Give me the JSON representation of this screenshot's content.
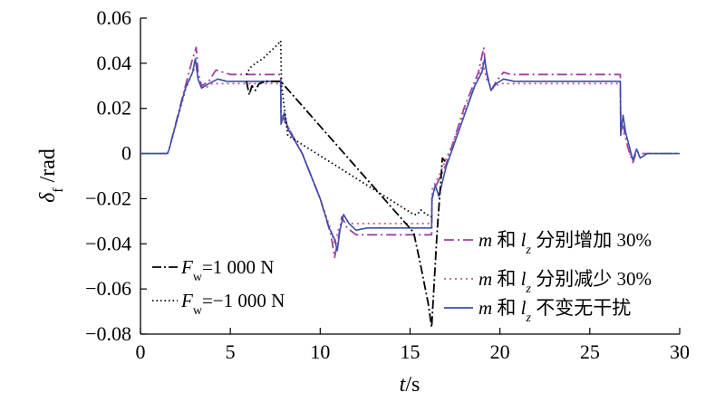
{
  "chart_data": {
    "type": "line",
    "xlabel": "t/s",
    "ylabel": "δf /rad",
    "xlim": [
      0,
      30
    ],
    "ylim": [
      -0.08,
      0.06
    ],
    "xticks": [
      0,
      5,
      10,
      15,
      20,
      25,
      30
    ],
    "xtick_labels": [
      "0",
      "5",
      "10",
      "15",
      "20",
      "25",
      "30"
    ],
    "yticks": [
      -0.08,
      -0.06,
      -0.04,
      -0.02,
      0,
      0.02,
      0.04,
      0.06
    ],
    "ytick_labels": [
      "−0.08",
      "−0.06",
      "−0.04",
      "−0.02",
      "0",
      "0.02",
      "0.04",
      "0.06"
    ],
    "grid": false,
    "legend_right": {
      "placement": "bottom-right",
      "entries": [
        {
          "series": "m_lz_plus30",
          "text": "m 和 lz 分别增加 30%"
        },
        {
          "series": "m_lz_minus30",
          "text": "m 和 lz 分别减少 30%"
        },
        {
          "series": "baseline",
          "text": "m 和 lz 不变无干扰"
        }
      ]
    },
    "legend_left": {
      "placement": "bottom-left",
      "entries": [
        {
          "series": "Fw_plus",
          "text": "Fw=1 000 N"
        },
        {
          "series": "Fw_minus",
          "text": "Fw=−1 000 N"
        }
      ]
    },
    "series": [
      {
        "id": "m_lz_plus30",
        "name": "m 和 lz 分别增加 30%",
        "color": "#a23ea6",
        "dash": "11,4,2,4",
        "x": [
          0,
          1.5,
          1.6,
          2.5,
          2.9,
          3.1,
          3.2,
          3.4,
          3.8,
          4.2,
          4.6,
          5.0,
          7.8,
          7.82,
          8.0,
          8.2,
          9.0,
          10.0,
          10.6,
          10.8,
          11.0,
          11.2,
          11.5,
          12.0,
          12.5,
          13.0,
          16.2,
          16.22,
          16.4,
          17.0,
          18.0,
          18.8,
          19.1,
          19.2,
          19.5,
          19.8,
          20.2,
          20.6,
          21.0,
          26.7,
          26.72,
          26.9,
          27.1,
          27.4,
          27.6,
          27.8,
          28.2,
          30
        ],
        "y": [
          0,
          0,
          0.002,
          0.03,
          0.042,
          0.047,
          0.036,
          0.03,
          0.032,
          0.037,
          0.036,
          0.035,
          0.035,
          0.018,
          0.015,
          0.012,
          0.0,
          -0.02,
          -0.036,
          -0.046,
          -0.038,
          -0.028,
          -0.033,
          -0.036,
          -0.036,
          -0.036,
          -0.036,
          -0.02,
          -0.015,
          -0.005,
          0.02,
          0.036,
          0.047,
          0.038,
          0.028,
          0.032,
          0.036,
          0.035,
          0.035,
          0.035,
          0.014,
          0.011,
          0.003,
          -0.004,
          0.001,
          0.0,
          0.0,
          0
        ]
      },
      {
        "id": "m_lz_minus30",
        "name": "m 和 lz 分别减少 30%",
        "color": "#c8559a",
        "dash": "2,4",
        "x": [
          0,
          1.5,
          1.6,
          2.5,
          2.9,
          3.1,
          3.3,
          3.6,
          4.0,
          4.5,
          7.8,
          7.82,
          8.2,
          9.0,
          10.0,
          10.6,
          10.8,
          11.0,
          11.3,
          11.8,
          12.5,
          16.2,
          16.22,
          16.6,
          17.4,
          18.2,
          18.8,
          19.05,
          19.3,
          19.6,
          20.0,
          20.5,
          26.7,
          26.72,
          27.0,
          27.2,
          27.5,
          28.0,
          30
        ],
        "y": [
          0,
          0,
          0.002,
          0.028,
          0.036,
          0.039,
          0.031,
          0.029,
          0.031,
          0.031,
          0.031,
          0.016,
          0.012,
          0.0,
          -0.02,
          -0.034,
          -0.04,
          -0.034,
          -0.029,
          -0.031,
          -0.031,
          -0.031,
          -0.016,
          -0.01,
          0.005,
          0.022,
          0.034,
          0.04,
          0.032,
          0.029,
          0.031,
          0.031,
          0.031,
          0.012,
          0.007,
          0.0,
          -0.002,
          0.0,
          0
        ]
      },
      {
        "id": "baseline",
        "name": "m 和 lz 不变无干扰",
        "color": "#3a4fa8",
        "dash": "",
        "x": [
          0,
          1.5,
          1.6,
          2.5,
          2.9,
          3.05,
          3.2,
          3.4,
          3.8,
          4.3,
          4.8,
          7.8,
          7.82,
          8.0,
          8.2,
          9.0,
          10.0,
          10.5,
          10.8,
          10.95,
          11.1,
          11.3,
          11.6,
          12.0,
          12.6,
          16.2,
          16.22,
          16.4,
          16.6,
          17.0,
          17.8,
          18.6,
          19.0,
          19.15,
          19.3,
          19.5,
          19.8,
          20.2,
          20.8,
          26.7,
          26.72,
          26.85,
          27.0,
          27.2,
          27.4,
          27.6,
          27.8,
          28.2,
          30
        ],
        "y": [
          0,
          0,
          0.002,
          0.029,
          0.036,
          0.042,
          0.033,
          0.029,
          0.031,
          0.033,
          0.032,
          0.032,
          0.013,
          0.018,
          0.011,
          0.0,
          -0.02,
          -0.033,
          -0.038,
          -0.043,
          -0.034,
          -0.027,
          -0.031,
          -0.034,
          -0.033,
          -0.033,
          -0.02,
          -0.014,
          -0.019,
          -0.006,
          0.012,
          0.03,
          0.036,
          0.042,
          0.034,
          0.028,
          0.031,
          0.033,
          0.032,
          0.032,
          0.008,
          0.017,
          0.009,
          0.003,
          -0.003,
          0.002,
          -0.002,
          0.0,
          0
        ]
      },
      {
        "id": "Fw_plus",
        "name": "Fw=1 000 N",
        "color": "#000000",
        "dash": "10,3,2,3",
        "x": [
          5.9,
          6.05,
          6.2,
          6.4,
          6.6,
          7.0,
          7.5,
          7.8,
          15.2,
          15.6,
          16.0,
          16.2,
          16.5,
          16.8,
          17.0
        ],
        "y": [
          0.032,
          0.026,
          0.03,
          0.028,
          0.031,
          0.032,
          0.032,
          0.032,
          -0.035,
          -0.05,
          -0.066,
          -0.077,
          -0.035,
          -0.002,
          -0.004
        ]
      },
      {
        "id": "Fw_minus",
        "name": "Fw=−1 000 N",
        "color": "#000000",
        "dash": "1.5,3",
        "x": [
          5.9,
          6.1,
          6.4,
          6.8,
          7.2,
          7.6,
          7.8,
          7.85,
          8.2,
          15.2,
          15.4,
          15.6,
          15.9,
          16.2
        ],
        "y": [
          0.035,
          0.038,
          0.04,
          0.042,
          0.045,
          0.048,
          0.05,
          0.03,
          0.008,
          -0.027,
          -0.027,
          -0.025,
          -0.027,
          -0.028
        ]
      }
    ]
  }
}
